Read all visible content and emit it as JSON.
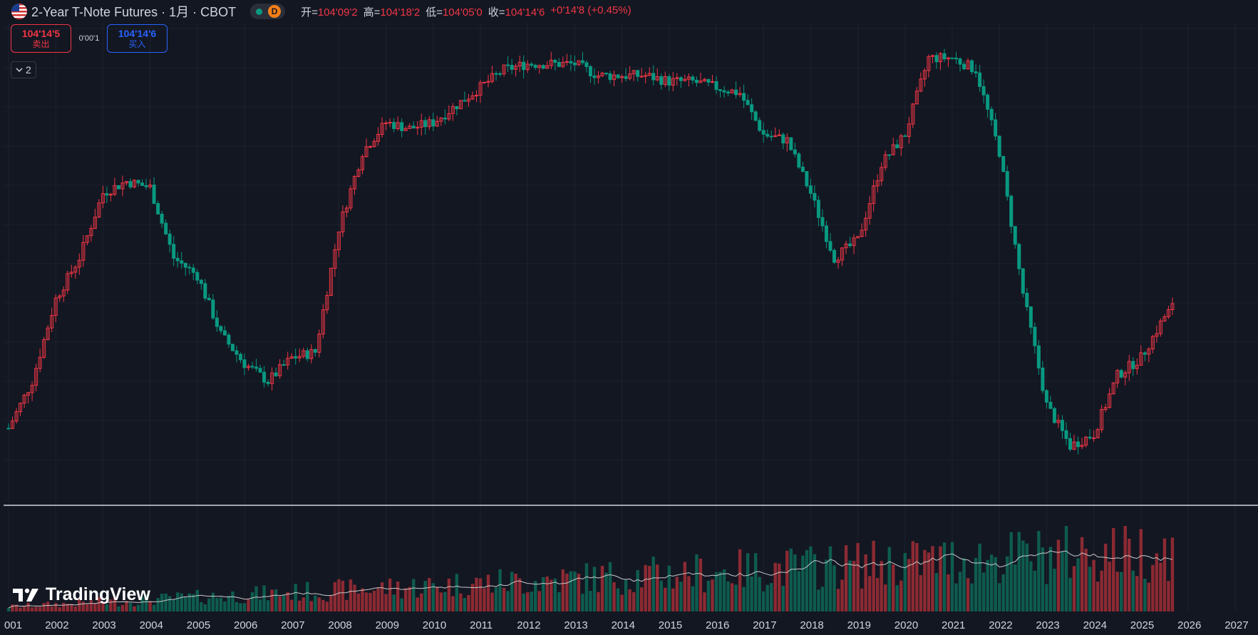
{
  "legend": {
    "title": "2-Year T-Note Futures · 1月 · CBOT",
    "delay_badge": "D",
    "ohlc": [
      {
        "label": "开=",
        "value": "104'09'2"
      },
      {
        "label": "高=",
        "value": "104'18'2"
      },
      {
        "label": "低=",
        "value": "104'05'0"
      },
      {
        "label": "收=",
        "value": "104'14'6"
      }
    ],
    "change": "+0'14'8 (+0.45%)"
  },
  "trade": {
    "sell_price": "104'14'5",
    "sell_label": "卖出",
    "spread": "0'00'1",
    "buy_price": "104'14'6",
    "buy_label": "买入"
  },
  "indicator_toggle": {
    "count": "2"
  },
  "watermark": {
    "text": "TradingView"
  },
  "colors": {
    "background": "#131722",
    "up": "#f23645",
    "down": "#089981",
    "grid": "#1e222d",
    "volume_ma": "#c8c8c8"
  },
  "chart_data": {
    "type": "candlestick",
    "timeframe": "1 month",
    "x_tick_labels": [
      "001",
      "2002",
      "2003",
      "2004",
      "2005",
      "2006",
      "2007",
      "2008",
      "2009",
      "2010",
      "2011",
      "2012",
      "2013",
      "2014",
      "2015",
      "2016",
      "2017",
      "2018",
      "2019",
      "2020",
      "2021",
      "2022",
      "2023",
      "2024",
      "2025",
      "2026",
      "2027"
    ],
    "x": [
      "2001-01",
      "2001-07",
      "2002-01",
      "2002-07",
      "2003-01",
      "2003-07",
      "2004-01",
      "2004-07",
      "2005-01",
      "2005-07",
      "2006-01",
      "2006-07",
      "2007-01",
      "2007-07",
      "2008-01",
      "2008-07",
      "2009-01",
      "2009-07",
      "2010-01",
      "2010-07",
      "2011-01",
      "2011-07",
      "2012-01",
      "2012-07",
      "2013-01",
      "2013-07",
      "2014-01",
      "2014-07",
      "2015-01",
      "2015-07",
      "2016-01",
      "2016-07",
      "2017-01",
      "2017-07",
      "2018-01",
      "2018-07",
      "2019-01",
      "2019-07",
      "2020-01",
      "2020-07",
      "2021-01",
      "2021-07",
      "2022-01",
      "2022-07",
      "2023-01",
      "2023-07",
      "2024-01",
      "2024-07",
      "2025-01",
      "2025-07",
      "2025-09"
    ],
    "y": [
      102.4,
      103.2,
      104.6,
      105.3,
      106.4,
      106.6,
      106.5,
      105.3,
      105.0,
      104.0,
      103.5,
      103.2,
      103.6,
      103.7,
      105.8,
      107.1,
      107.6,
      107.5,
      107.6,
      107.9,
      108.2,
      108.5,
      108.6,
      108.6,
      108.6,
      108.4,
      108.4,
      108.4,
      108.3,
      108.3,
      108.2,
      108.1,
      107.4,
      107.3,
      106.4,
      105.3,
      105.6,
      106.9,
      107.4,
      108.7,
      108.7,
      108.5,
      107.1,
      104.7,
      102.8,
      102.1,
      102.3,
      103.3,
      103.6,
      104.3,
      104.46
    ],
    "ylim": [
      101.2,
      109.2
    ],
    "last_close": "104'14'6",
    "volume_panel": {
      "ma_line": true
    }
  }
}
